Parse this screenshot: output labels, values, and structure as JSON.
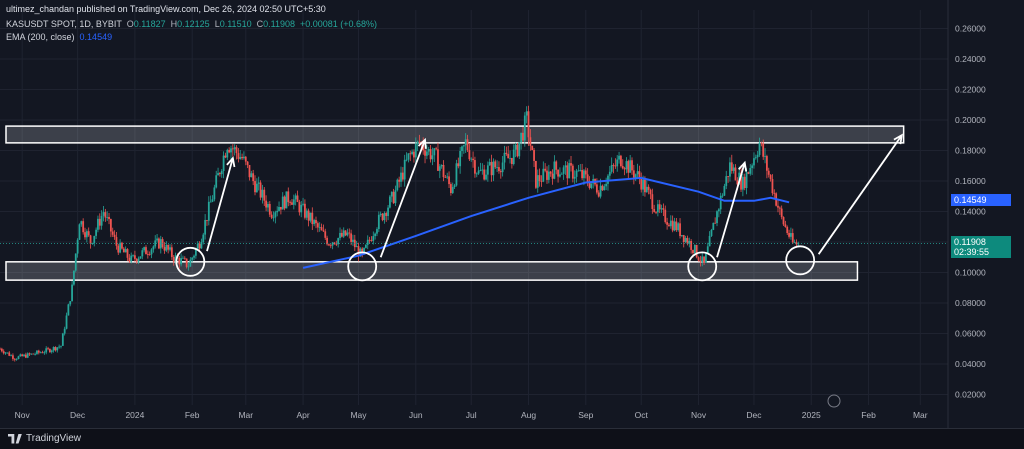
{
  "header": {
    "published": "ultimez_chandan published on TradingView.com, Dec 26, 2024 02:50 UTC+5:30",
    "symbol": "KASUSDT SPOT, 1D, BYBIT",
    "o_label": "O",
    "o_value": "0.11827",
    "h_label": "H",
    "h_value": "0.12125",
    "l_label": "L",
    "l_value": "0.11510",
    "c_label": "C",
    "c_value": "0.11908",
    "change": "+0.00081 (+0.68%)",
    "ema_label": "EMA (200, close)",
    "ema_value": "0.14549"
  },
  "price_tags": {
    "ema": "0.14549",
    "last": "0.11908",
    "countdown": "02:39:55"
  },
  "footer": {
    "brand": "TradingView"
  },
  "colors": {
    "background": "#131722",
    "up": "#26a69a",
    "down": "#ef5350",
    "ema": "#2962ff",
    "grid": "#1f2330",
    "zone_fill": "#d1d4dc",
    "annotation": "#ffffff"
  },
  "chart_data": {
    "type": "candlestick",
    "symbol": "KASUSDT",
    "timeframe": "1D",
    "exchange": "BYBIT",
    "y_axis": {
      "min": 0.01,
      "max": 0.265,
      "ticks": [
        0.02,
        0.04,
        0.06,
        0.08,
        0.1,
        0.12,
        0.14,
        0.16,
        0.18,
        0.2,
        0.22,
        0.24,
        0.26
      ],
      "tick_labels": [
        "0.02000",
        "0.04000",
        "0.06000",
        "0.08000",
        "0.10000",
        "0.12000",
        "0.14000",
        "0.16000",
        "0.18000",
        "0.20000",
        "0.22000",
        "0.24000",
        "0.26000"
      ]
    },
    "x_axis": {
      "start": "2023-10-20",
      "end": "2025-03-16",
      "ticks": [
        {
          "label": "Nov",
          "date": "2023-11-01"
        },
        {
          "label": "Dec",
          "date": "2023-12-01"
        },
        {
          "label": "2024",
          "date": "2024-01-01"
        },
        {
          "label": "Feb",
          "date": "2024-02-01"
        },
        {
          "label": "Mar",
          "date": "2024-03-01"
        },
        {
          "label": "Apr",
          "date": "2024-04-01"
        },
        {
          "label": "May",
          "date": "2024-05-01"
        },
        {
          "label": "Jun",
          "date": "2024-06-01"
        },
        {
          "label": "Jul",
          "date": "2024-07-01"
        },
        {
          "label": "Aug",
          "date": "2024-08-01"
        },
        {
          "label": "Sep",
          "date": "2024-09-01"
        },
        {
          "label": "Oct",
          "date": "2024-10-01"
        },
        {
          "label": "Nov",
          "date": "2024-11-01"
        },
        {
          "label": "Dec",
          "date": "2024-12-01"
        },
        {
          "label": "2025",
          "date": "2025-01-01"
        },
        {
          "label": "Feb",
          "date": "2025-02-01"
        },
        {
          "label": "Mar",
          "date": "2025-03-01"
        }
      ]
    },
    "close_path": [
      [
        "2023-10-20",
        0.05
      ],
      [
        "2023-10-28",
        0.044
      ],
      [
        "2023-11-05",
        0.046
      ],
      [
        "2023-11-15",
        0.049
      ],
      [
        "2023-11-22",
        0.052
      ],
      [
        "2023-11-28",
        0.09
      ],
      [
        "2023-12-02",
        0.135
      ],
      [
        "2023-12-08",
        0.12
      ],
      [
        "2023-12-15",
        0.14
      ],
      [
        "2023-12-22",
        0.118
      ],
      [
        "2023-12-30",
        0.108
      ],
      [
        "2024-01-08",
        0.115
      ],
      [
        "2024-01-15",
        0.12
      ],
      [
        "2024-01-22",
        0.11
      ],
      [
        "2024-01-30",
        0.105
      ],
      [
        "2024-02-05",
        0.12
      ],
      [
        "2024-02-12",
        0.15
      ],
      [
        "2024-02-20",
        0.185
      ],
      [
        "2024-02-28",
        0.175
      ],
      [
        "2024-03-05",
        0.16
      ],
      [
        "2024-03-15",
        0.14
      ],
      [
        "2024-03-25",
        0.15
      ],
      [
        "2024-04-05",
        0.135
      ],
      [
        "2024-04-15",
        0.12
      ],
      [
        "2024-04-25",
        0.125
      ],
      [
        "2024-05-03",
        0.11
      ],
      [
        "2024-05-10",
        0.13
      ],
      [
        "2024-05-20",
        0.15
      ],
      [
        "2024-05-28",
        0.175
      ],
      [
        "2024-06-03",
        0.185
      ],
      [
        "2024-06-12",
        0.175
      ],
      [
        "2024-06-20",
        0.155
      ],
      [
        "2024-06-28",
        0.185
      ],
      [
        "2024-07-05",
        0.165
      ],
      [
        "2024-07-15",
        0.17
      ],
      [
        "2024-07-25",
        0.178
      ],
      [
        "2024-07-31",
        0.2
      ],
      [
        "2024-08-05",
        0.16
      ],
      [
        "2024-08-15",
        0.168
      ],
      [
        "2024-08-28",
        0.165
      ],
      [
        "2024-09-08",
        0.155
      ],
      [
        "2024-09-20",
        0.175
      ],
      [
        "2024-09-30",
        0.162
      ],
      [
        "2024-10-10",
        0.14
      ],
      [
        "2024-10-20",
        0.13
      ],
      [
        "2024-10-28",
        0.118
      ],
      [
        "2024-11-04",
        0.105
      ],
      [
        "2024-11-10",
        0.135
      ],
      [
        "2024-11-18",
        0.17
      ],
      [
        "2024-11-25",
        0.158
      ],
      [
        "2024-12-04",
        0.185
      ],
      [
        "2024-12-10",
        0.16
      ],
      [
        "2024-12-16",
        0.135
      ],
      [
        "2024-12-22",
        0.119
      ],
      [
        "2024-12-25",
        0.119
      ]
    ],
    "ema_200": [
      [
        "2024-04-01",
        0.103
      ],
      [
        "2024-05-01",
        0.111
      ],
      [
        "2024-06-01",
        0.124
      ],
      [
        "2024-07-01",
        0.137
      ],
      [
        "2024-08-01",
        0.149
      ],
      [
        "2024-09-01",
        0.159
      ],
      [
        "2024-10-01",
        0.162
      ],
      [
        "2024-11-01",
        0.153
      ],
      [
        "2024-11-15",
        0.147
      ],
      [
        "2024-12-01",
        0.147
      ],
      [
        "2024-12-10",
        0.149
      ],
      [
        "2024-12-20",
        0.146
      ]
    ],
    "zones": [
      {
        "name": "resistance",
        "start": "2023-10-20",
        "end": "2025-02-20",
        "top": 0.196,
        "bottom": 0.185
      },
      {
        "name": "support",
        "start": "2023-10-20",
        "end": "2025-01-26",
        "top": 0.107,
        "bottom": 0.095
      }
    ],
    "circles": [
      {
        "date": "2024-01-31",
        "price": 0.107
      },
      {
        "date": "2024-05-03",
        "price": 0.104
      },
      {
        "date": "2024-11-03",
        "price": 0.104
      },
      {
        "date": "2024-12-26",
        "price": 0.108
      }
    ],
    "arrows": [
      {
        "from": [
          "2024-02-09",
          "0.114"
        ],
        "to": [
          "2024-02-23",
          "0.175"
        ]
      },
      {
        "from": [
          "2024-05-13",
          "0.110"
        ],
        "to": [
          "2024-06-06",
          "0.187"
        ]
      },
      {
        "from": [
          "2024-11-11",
          "0.110"
        ],
        "to": [
          "2024-11-26",
          "0.172"
        ]
      },
      {
        "from": [
          "2025-01-05",
          "0.112"
        ],
        "to": [
          "2025-02-19",
          "0.190"
        ]
      }
    ]
  }
}
